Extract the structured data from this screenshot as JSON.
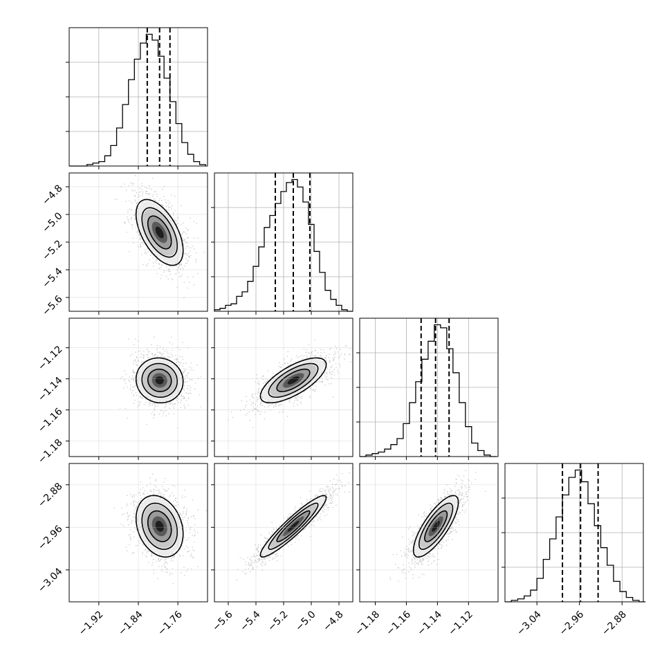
{
  "chart_data": {
    "type": "corner",
    "parameters": 4,
    "grid": true,
    "axes": [
      {
        "range": [
          -1.98,
          -1.7
        ],
        "ticks": [
          -1.92,
          -1.84,
          -1.76
        ],
        "tick_labels": [
          "−1.92",
          "−1.84",
          "−1.76"
        ]
      },
      {
        "range": [
          -5.7,
          -4.7
        ],
        "ticks": [
          -5.6,
          -5.4,
          -5.2,
          -5.0,
          -4.8
        ],
        "tick_labels": [
          "−5.6",
          "−5.4",
          "−5.2",
          "−5.0",
          "−4.8"
        ]
      },
      {
        "range": [
          -1.19,
          -1.101
        ],
        "ticks": [
          -1.18,
          -1.16,
          -1.14,
          -1.12
        ],
        "tick_labels": [
          "−1.18",
          "−1.16",
          "−1.14",
          "−1.12"
        ]
      },
      {
        "range": [
          -3.1,
          -2.84
        ],
        "ticks": [
          -3.04,
          -2.96,
          -2.88
        ],
        "tick_labels": [
          "−3.04",
          "−2.96",
          "−2.88"
        ]
      }
    ],
    "marginals": [
      {
        "param": 0,
        "quantiles": [
          -1.822,
          -1.797,
          -1.776
        ],
        "bin_edges": [
          -1.98,
          -1.968,
          -1.956,
          -1.944,
          -1.932,
          -1.92,
          -1.908,
          -1.896,
          -1.884,
          -1.872,
          -1.86,
          -1.848,
          -1.836,
          -1.824,
          -1.812,
          -1.8,
          -1.788,
          -1.776,
          -1.764,
          -1.752,
          -1.74,
          -1.728,
          -1.716,
          -1.704
        ],
        "counts": [
          0,
          0,
          0,
          1,
          2,
          3,
          7,
          14,
          26,
          42,
          59,
          73,
          84,
          90,
          86,
          75,
          60,
          44,
          29,
          16,
          8,
          3,
          1
        ]
      },
      {
        "param": 1,
        "quantiles": [
          -5.26,
          -5.13,
          -5.01
        ],
        "bin_edges": [
          -5.7,
          -5.66,
          -5.62,
          -5.58,
          -5.54,
          -5.5,
          -5.46,
          -5.42,
          -5.38,
          -5.34,
          -5.3,
          -5.26,
          -5.22,
          -5.18,
          -5.14,
          -5.1,
          -5.06,
          -5.02,
          -4.98,
          -4.94,
          -4.9,
          -4.86,
          -4.82,
          -4.78,
          -4.74,
          -4.7
        ],
        "counts": [
          1,
          2,
          4,
          5,
          10,
          13,
          20,
          30,
          43,
          56,
          64,
          72,
          80,
          86,
          88,
          83,
          73,
          58,
          40,
          26,
          14,
          8,
          4,
          1,
          0
        ]
      },
      {
        "param": 2,
        "quantiles": [
          -1.1505,
          -1.1412,
          -1.1325
        ],
        "bin_edges": [
          -1.19,
          -1.186,
          -1.182,
          -1.178,
          -1.174,
          -1.17,
          -1.166,
          -1.162,
          -1.158,
          -1.154,
          -1.15,
          -1.146,
          -1.142,
          -1.138,
          -1.134,
          -1.13,
          -1.126,
          -1.122,
          -1.118,
          -1.114,
          -1.11,
          -1.106,
          -1.102
        ],
        "counts": [
          0,
          1,
          2,
          3,
          5,
          8,
          12,
          22,
          36,
          50,
          65,
          77,
          88,
          86,
          72,
          56,
          36,
          20,
          9,
          4,
          1,
          0
        ]
      },
      {
        "param": 3,
        "quantiles": [
          -2.992,
          -2.958,
          -2.925
        ],
        "bin_edges": [
          -3.1,
          -3.088,
          -3.076,
          -3.064,
          -3.052,
          -3.04,
          -3.028,
          -3.016,
          -3.004,
          -2.992,
          -2.98,
          -2.968,
          -2.956,
          -2.944,
          -2.932,
          -2.92,
          -2.908,
          -2.896,
          -2.884,
          -2.872,
          -2.86,
          -2.848,
          -2.836
        ],
        "counts": [
          0,
          1,
          2,
          4,
          8,
          16,
          29,
          43,
          58,
          73,
          85,
          90,
          82,
          67,
          52,
          37,
          25,
          14,
          7,
          3,
          1,
          0
        ]
      }
    ],
    "joints": [
      {
        "x_param": 0,
        "y_param": 1,
        "mean": [
          -1.797,
          -5.13
        ],
        "std": [
          0.028,
          0.14
        ],
        "rho": -0.55
      },
      {
        "x_param": 0,
        "y_param": 2,
        "mean": [
          -1.797,
          -1.141
        ],
        "std": [
          0.028,
          0.0085
        ],
        "rho": -0.05
      },
      {
        "x_param": 1,
        "y_param": 2,
        "mean": [
          -5.13,
          -1.141
        ],
        "std": [
          0.14,
          0.0085
        ],
        "rho": 0.7
      },
      {
        "x_param": 0,
        "y_param": 3,
        "mean": [
          -1.797,
          -2.958
        ],
        "std": [
          0.028,
          0.034
        ],
        "rho": -0.25
      },
      {
        "x_param": 1,
        "y_param": 3,
        "mean": [
          -5.13,
          -2.958
        ],
        "std": [
          0.14,
          0.034
        ],
        "rho": 0.93
      },
      {
        "x_param": 2,
        "y_param": 3,
        "mean": [
          -1.141,
          -2.958
        ],
        "std": [
          0.0085,
          0.034
        ],
        "rho": 0.78
      }
    ],
    "contour_levels_sigma": [
      0.5,
      1.0,
      1.5,
      2.0
    ],
    "sample_count": 10000
  }
}
